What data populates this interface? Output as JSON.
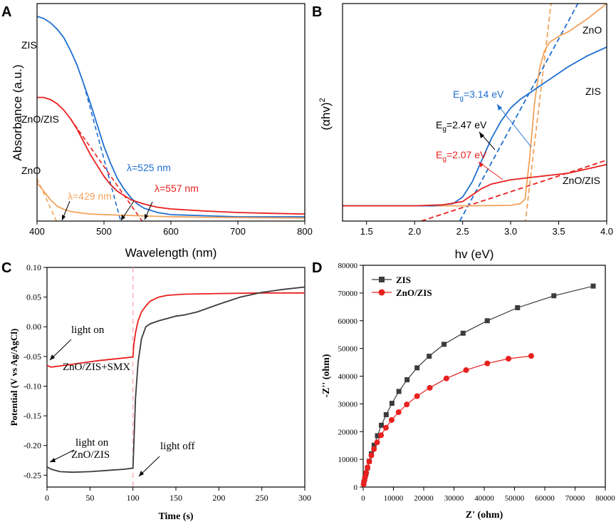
{
  "colors": {
    "blue": "#1f6fd1",
    "red": "#e8201e",
    "orange": "#f2a35a",
    "gray": "#3c3c3c",
    "dash_pink": "#f4a3a6",
    "axis": "#000000"
  },
  "chart_data": [
    {
      "panel": "A",
      "type": "line",
      "xlabel": "Wavelength (nm)",
      "ylabel": "Absorbance (a.u.)",
      "xlim": [
        400,
        800
      ],
      "ylim": [
        0,
        1
      ],
      "xticks": [
        "400",
        "500",
        "600",
        "700",
        "800"
      ],
      "series": [
        {
          "name": "ZIS",
          "color": "#1f6fd1",
          "x": [
            400,
            410,
            420,
            430,
            440,
            450,
            460,
            470,
            480,
            490,
            500,
            510,
            520,
            530,
            540,
            550,
            560,
            580,
            600,
            650,
            700,
            750,
            800
          ],
          "y": [
            0.96,
            0.95,
            0.93,
            0.9,
            0.86,
            0.8,
            0.73,
            0.64,
            0.55,
            0.45,
            0.35,
            0.27,
            0.2,
            0.15,
            0.11,
            0.08,
            0.06,
            0.04,
            0.03,
            0.025,
            0.02,
            0.02,
            0.02
          ]
        },
        {
          "name": "ZnO/ZIS",
          "color": "#e8201e",
          "x": [
            400,
            410,
            420,
            430,
            440,
            450,
            460,
            470,
            480,
            490,
            500,
            510,
            520,
            530,
            540,
            550,
            560,
            580,
            600,
            650,
            700,
            750,
            800
          ],
          "y": [
            0.58,
            0.58,
            0.57,
            0.55,
            0.52,
            0.48,
            0.43,
            0.37,
            0.31,
            0.26,
            0.21,
            0.17,
            0.14,
            0.12,
            0.1,
            0.09,
            0.08,
            0.065,
            0.057,
            0.047,
            0.04,
            0.036,
            0.033
          ]
        },
        {
          "name": "ZnO",
          "color": "#f2a35a",
          "x": [
            400,
            410,
            420,
            430,
            440,
            450,
            460,
            480,
            500,
            550,
            600,
            650,
            700,
            750,
            800
          ],
          "y": [
            0.18,
            0.14,
            0.1,
            0.07,
            0.055,
            0.045,
            0.04,
            0.033,
            0.03,
            0.025,
            0.02,
            0.018,
            0.016,
            0.015,
            0.014
          ]
        }
      ],
      "annotations": [
        {
          "text": "λ=525 nm",
          "color": "#1f6fd1",
          "tangent": [
            [
              470,
              0.64
            ],
            [
              525,
              0.0
            ]
          ]
        },
        {
          "text": "λ=557 nm",
          "color": "#e8201e",
          "tangent": [
            [
              450,
              0.48
            ],
            [
              557,
              0.0
            ]
          ]
        },
        {
          "text": "λ=429 nm",
          "color": "#f2a35a",
          "tangent": [
            [
              400,
              0.2
            ],
            [
              429,
              0.0
            ]
          ]
        }
      ]
    },
    {
      "panel": "B",
      "type": "line",
      "xlabel": "hv (eV)",
      "ylabel": "(αhv)",
      "ylabel_sup": "2",
      "xlim": [
        1.25,
        4.0
      ],
      "ylim": [
        0,
        1
      ],
      "xticks": [
        "1.5",
        "2.0",
        "2.5",
        "3.0",
        "3.5",
        "4.0"
      ],
      "series": [
        {
          "name": "ZnO",
          "color": "#f2a35a",
          "x": [
            1.25,
            2.5,
            3.0,
            3.1,
            3.15,
            3.2,
            3.25,
            3.3,
            3.35,
            3.4,
            3.5,
            3.6,
            3.8,
            4.0
          ],
          "y": [
            0.07,
            0.07,
            0.072,
            0.08,
            0.1,
            0.3,
            0.55,
            0.7,
            0.78,
            0.82,
            0.85,
            0.87,
            0.93,
            1.0
          ]
        },
        {
          "name": "ZIS",
          "color": "#1f6fd1",
          "x": [
            1.25,
            2.2,
            2.4,
            2.5,
            2.6,
            2.7,
            2.8,
            2.9,
            3.0,
            3.1,
            3.2,
            3.3,
            3.4,
            3.6,
            3.8,
            4.0
          ],
          "y": [
            0.07,
            0.07,
            0.08,
            0.11,
            0.18,
            0.28,
            0.38,
            0.46,
            0.52,
            0.56,
            0.59,
            0.62,
            0.65,
            0.71,
            0.76,
            0.8
          ]
        },
        {
          "name": "ZnO/ZIS",
          "color": "#e8201e",
          "x": [
            1.25,
            2.0,
            2.3,
            2.5,
            2.6,
            2.7,
            2.8,
            2.9,
            3.0,
            3.2,
            3.4,
            3.6,
            3.8,
            4.0
          ],
          "y": [
            0.07,
            0.07,
            0.075,
            0.09,
            0.12,
            0.15,
            0.17,
            0.18,
            0.19,
            0.2,
            0.21,
            0.22,
            0.24,
            0.26
          ]
        }
      ],
      "tangents": [
        {
          "color": "#f2a35a",
          "line": [
            [
              3.14,
              -0.05
            ],
            [
              3.42,
              1.0
            ]
          ]
        },
        {
          "color": "#1f6fd1",
          "line": [
            [
              2.47,
              0.0
            ],
            [
              3.7,
              1.0
            ]
          ]
        },
        {
          "color": "#e8201e",
          "line": [
            [
              2.07,
              0.0
            ],
            [
              4.0,
              0.28
            ]
          ]
        }
      ],
      "labels": [
        "ZnO",
        "ZIS",
        "ZnO/ZIS"
      ],
      "eg_labels": [
        {
          "base": "E",
          "sub": "g",
          "value": "=3.14 eV",
          "color": "#1f6fd1"
        },
        {
          "base": "E",
          "sub": "g",
          "value": "=2.47 eV",
          "color": "#000000"
        },
        {
          "base": "E",
          "sub": "g",
          "value": "=2.07 eV",
          "color": "#e8201e"
        }
      ]
    },
    {
      "panel": "C",
      "type": "line",
      "xlabel": "Time (s)",
      "ylabel": "Potential (V vs Ag/AgCl)",
      "xlim": [
        0,
        300
      ],
      "ylim": [
        -0.27,
        0.1
      ],
      "xticks": [
        "0",
        "50",
        "100",
        "150",
        "200",
        "250",
        "300"
      ],
      "yticks": [
        "-0.25",
        "-0.20",
        "-0.15",
        "-0.10",
        "-0.05",
        "0.00",
        "0.05",
        "0.10"
      ],
      "series": [
        {
          "name": "ZnO/ZIS+SMX",
          "color": "#e8201e",
          "x": [
            0,
            5,
            20,
            40,
            60,
            80,
            100,
            101,
            103,
            106,
            110,
            115,
            120,
            130,
            140,
            160,
            200,
            250,
            300
          ],
          "y": [
            -0.065,
            -0.068,
            -0.065,
            -0.061,
            -0.057,
            -0.054,
            -0.051,
            -0.03,
            -0.01,
            0.01,
            0.025,
            0.035,
            0.043,
            0.05,
            0.053,
            0.055,
            0.056,
            0.057,
            0.057
          ]
        },
        {
          "name": "ZnO/ZIS",
          "color": "#3c3c3c",
          "x": [
            0,
            5,
            15,
            30,
            50,
            70,
            90,
            100,
            101,
            103,
            106,
            110,
            115,
            120,
            130,
            140,
            150,
            160,
            175,
            200,
            225,
            250,
            275,
            300
          ],
          "y": [
            -0.236,
            -0.24,
            -0.244,
            -0.245,
            -0.244,
            -0.242,
            -0.24,
            -0.238,
            -0.2,
            -0.12,
            -0.06,
            -0.02,
            0.0,
            0.005,
            0.01,
            0.014,
            0.018,
            0.02,
            0.025,
            0.038,
            0.05,
            0.058,
            0.063,
            0.067
          ]
        }
      ],
      "marker_x": 100,
      "texts": [
        "light on",
        "ZnO/ZIS+SMX",
        "light on",
        "ZnO/ZIS",
        "light off"
      ]
    },
    {
      "panel": "D",
      "type": "scatter",
      "xlabel": "Z' (ohm)",
      "ylabel": "-Z'' (ohm)",
      "xlim": [
        0,
        80000
      ],
      "ylim": [
        0,
        80000
      ],
      "xticks": [
        "0",
        "10000",
        "20000",
        "30000",
        "40000",
        "50000",
        "60000",
        "70000",
        "80000"
      ],
      "yticks": [
        "0",
        "10000",
        "20000",
        "30000",
        "40000",
        "50000",
        "60000",
        "70000",
        "80000"
      ],
      "series": [
        {
          "name": "ZIS",
          "color": "#3c3c3c",
          "marker": "square",
          "x": [
            200,
            500,
            900,
            1400,
            2000,
            2700,
            3600,
            4700,
            6000,
            7600,
            9500,
            11800,
            14500,
            17800,
            21800,
            26700,
            33000,
            41000,
            51000,
            63000,
            76000
          ],
          "y": [
            1500,
            3000,
            4800,
            6900,
            9300,
            12000,
            15100,
            18500,
            22300,
            26100,
            30200,
            34500,
            38700,
            43000,
            47200,
            51500,
            55500,
            60000,
            64700,
            69000,
            72500
          ]
        },
        {
          "name": "ZnO/ZIS",
          "color": "#e8201e",
          "marker": "circle",
          "x": [
            150,
            350,
            650,
            1000,
            1450,
            2000,
            2700,
            3550,
            4600,
            5900,
            7500,
            9400,
            11700,
            14400,
            17800,
            22000,
            27500,
            34000,
            41000,
            48000,
            55500
          ],
          "y": [
            1000,
            2200,
            3600,
            5200,
            7100,
            9200,
            11400,
            13700,
            16100,
            18700,
            21400,
            24200,
            27000,
            29800,
            32800,
            35800,
            39200,
            42200,
            44600,
            46300,
            47300
          ]
        }
      ]
    }
  ],
  "panels": {
    "a": "A",
    "b": "B",
    "c": "C",
    "d": "D"
  }
}
